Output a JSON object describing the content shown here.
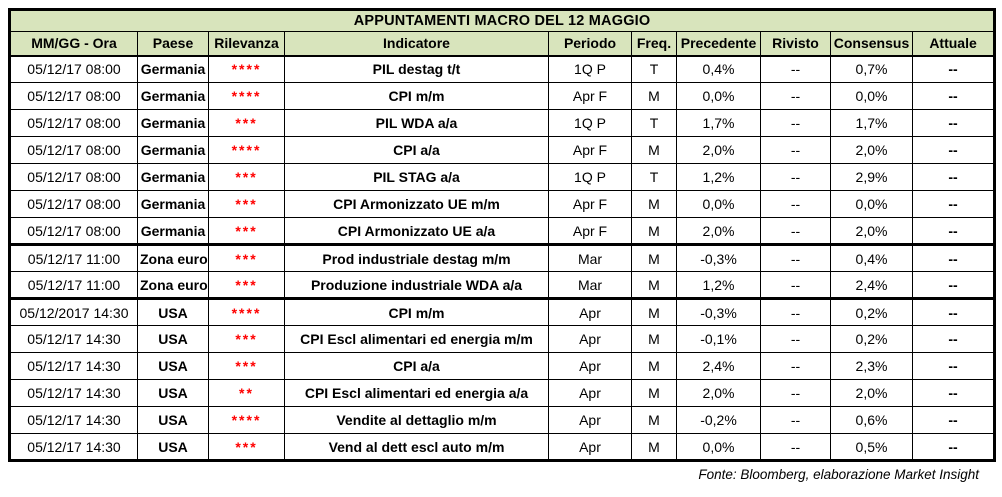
{
  "title": "APPUNTAMENTI MACRO DEL 12 MAGGIO",
  "columns": [
    "MM/GG - Ora",
    "Paese",
    "Rilevanza",
    "Indicatore",
    "Periodo",
    "Freq.",
    "Precedente",
    "Rivisto",
    "Consensus",
    "Attuale"
  ],
  "rows": [
    {
      "ora": "05/12/17 08:00",
      "paese": "Germania",
      "rilevanza": "****",
      "indicatore": "PIL destag t/t",
      "periodo": "1Q P",
      "freq": "T",
      "precedente": "0,4%",
      "rivisto": "--",
      "consensus": "0,7%",
      "attuale": "--",
      "group_end": false
    },
    {
      "ora": "05/12/17 08:00",
      "paese": "Germania",
      "rilevanza": "****",
      "indicatore": "CPI m/m",
      "periodo": "Apr F",
      "freq": "M",
      "precedente": "0,0%",
      "rivisto": "--",
      "consensus": "0,0%",
      "attuale": "--",
      "group_end": false
    },
    {
      "ora": "05/12/17 08:00",
      "paese": "Germania",
      "rilevanza": "***",
      "indicatore": "PIL WDA a/a",
      "periodo": "1Q P",
      "freq": "T",
      "precedente": "1,7%",
      "rivisto": "--",
      "consensus": "1,7%",
      "attuale": "--",
      "group_end": false
    },
    {
      "ora": "05/12/17 08:00",
      "paese": "Germania",
      "rilevanza": "****",
      "indicatore": "CPI a/a",
      "periodo": "Apr F",
      "freq": "M",
      "precedente": "2,0%",
      "rivisto": "--",
      "consensus": "2,0%",
      "attuale": "--",
      "group_end": false
    },
    {
      "ora": "05/12/17 08:00",
      "paese": "Germania",
      "rilevanza": "***",
      "indicatore": "PIL STAG a/a",
      "periodo": "1Q P",
      "freq": "T",
      "precedente": "1,2%",
      "rivisto": "--",
      "consensus": "2,9%",
      "attuale": "--",
      "group_end": false
    },
    {
      "ora": "05/12/17 08:00",
      "paese": "Germania",
      "rilevanza": "***",
      "indicatore": "CPI Armonizzato UE m/m",
      "periodo": "Apr F",
      "freq": "M",
      "precedente": "0,0%",
      "rivisto": "--",
      "consensus": "0,0%",
      "attuale": "--",
      "group_end": false
    },
    {
      "ora": "05/12/17 08:00",
      "paese": "Germania",
      "rilevanza": "***",
      "indicatore": "CPI Armonizzato UE a/a",
      "periodo": "Apr F",
      "freq": "M",
      "precedente": "2,0%",
      "rivisto": "--",
      "consensus": "2,0%",
      "attuale": "--",
      "group_end": true
    },
    {
      "ora": "05/12/17 11:00",
      "paese": "Zona euro",
      "rilevanza": "***",
      "indicatore": "Prod industriale destag m/m",
      "periodo": "Mar",
      "freq": "M",
      "precedente": "-0,3%",
      "rivisto": "--",
      "consensus": "0,4%",
      "attuale": "--",
      "group_end": false
    },
    {
      "ora": "05/12/17 11:00",
      "paese": "Zona euro",
      "rilevanza": "***",
      "indicatore": "Produzione industriale WDA a/a",
      "periodo": "Mar",
      "freq": "M",
      "precedente": "1,2%",
      "rivisto": "--",
      "consensus": "2,4%",
      "attuale": "--",
      "group_end": true
    },
    {
      "ora": "05/12/2017 14:30",
      "paese": "USA",
      "rilevanza": "****",
      "indicatore": "CPI m/m",
      "periodo": "Apr",
      "freq": "M",
      "precedente": "-0,3%",
      "rivisto": "--",
      "consensus": "0,2%",
      "attuale": "--",
      "group_end": false
    },
    {
      "ora": "05/12/17 14:30",
      "paese": "USA",
      "rilevanza": "***",
      "indicatore": "CPI Escl alimentari ed energia m/m",
      "periodo": "Apr",
      "freq": "M",
      "precedente": "-0,1%",
      "rivisto": "--",
      "consensus": "0,2%",
      "attuale": "--",
      "group_end": false
    },
    {
      "ora": "05/12/17 14:30",
      "paese": "USA",
      "rilevanza": "***",
      "indicatore": "CPI a/a",
      "periodo": "Apr",
      "freq": "M",
      "precedente": "2,4%",
      "rivisto": "--",
      "consensus": "2,3%",
      "attuale": "--",
      "group_end": false
    },
    {
      "ora": "05/12/17 14:30",
      "paese": "USA",
      "rilevanza": "**",
      "indicatore": "CPI Escl alimentari ed energia a/a",
      "periodo": "Apr",
      "freq": "M",
      "precedente": "2,0%",
      "rivisto": "--",
      "consensus": "2,0%",
      "attuale": "--",
      "group_end": false
    },
    {
      "ora": "05/12/17 14:30",
      "paese": "USA",
      "rilevanza": "****",
      "indicatore": "Vendite al dettaglio m/m",
      "periodo": "Apr",
      "freq": "M",
      "precedente": "-0,2%",
      "rivisto": "--",
      "consensus": "0,6%",
      "attuale": "--",
      "group_end": false
    },
    {
      "ora": "05/12/17 14:30",
      "paese": "USA",
      "rilevanza": "***",
      "indicatore": "Vend al dett escl auto m/m",
      "periodo": "Apr",
      "freq": "M",
      "precedente": "0,0%",
      "rivisto": "--",
      "consensus": "0,5%",
      "attuale": "--",
      "group_end": false
    }
  ],
  "footer": "Fonte: Bloomberg, elaborazione Market Insight",
  "colors": {
    "header_bg": "#d8e4bc",
    "star_red": "#ff0000",
    "border": "#000000",
    "background": "#ffffff"
  }
}
